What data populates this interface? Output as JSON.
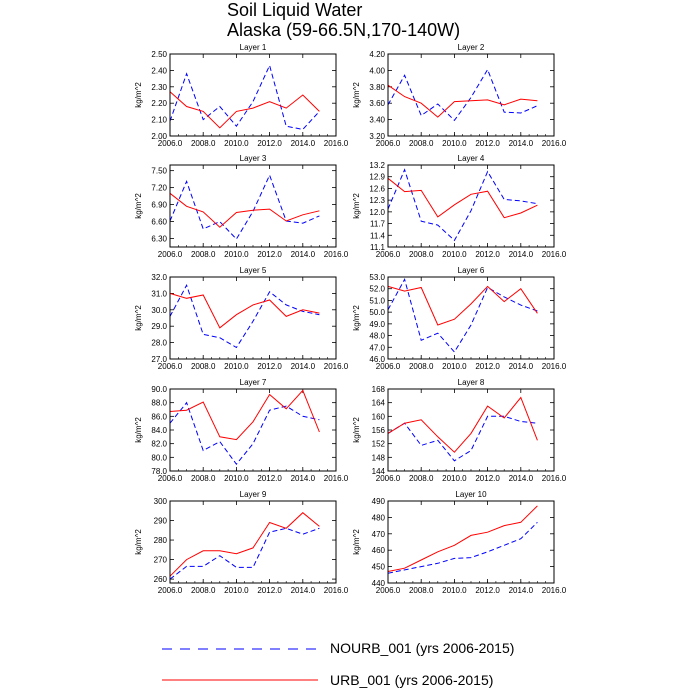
{
  "figure": {
    "title_line1": "Soil Liquid Water",
    "title_line2": "Alaska (59-66.5N,170-140W)"
  },
  "colors": {
    "nourb": "#0000ff",
    "urb": "#ff0000",
    "axis": "#000000"
  },
  "legend": {
    "items": [
      {
        "label": "NOURB_001 (yrs 2006-2015)",
        "style": "dashed",
        "color": "#0000ff"
      },
      {
        "label": "URB_001 (yrs 2006-2015)",
        "style": "solid",
        "color": "#ff0000"
      }
    ]
  },
  "chart_data": [
    {
      "type": "line",
      "title": "Layer 1",
      "ylabel": "kg/m^2",
      "xlim": [
        2006,
        2016
      ],
      "ylim": [
        2.0,
        2.5
      ],
      "xticks": [
        "2006.0",
        "2008.0",
        "2010.0",
        "2012.0",
        "2014.0",
        "2016.0"
      ],
      "yticks": [
        "2.00",
        "2.10",
        "2.20",
        "2.30",
        "2.40",
        "2.50"
      ],
      "x": [
        2006,
        2007,
        2008,
        2009,
        2010,
        2011,
        2012,
        2013,
        2014,
        2015
      ],
      "series": [
        {
          "name": "NOURB_001 (yrs 2006-2015)",
          "values": [
            2.09,
            2.38,
            2.1,
            2.18,
            2.06,
            2.21,
            2.43,
            2.06,
            2.04,
            2.15
          ]
        },
        {
          "name": "URB_001 (yrs 2006-2015)",
          "values": [
            2.27,
            2.18,
            2.15,
            2.05,
            2.15,
            2.17,
            2.21,
            2.17,
            2.25,
            2.15
          ]
        }
      ]
    },
    {
      "type": "line",
      "title": "Layer 2",
      "ylabel": "kg/m^2",
      "xlim": [
        2006,
        2016
      ],
      "ylim": [
        3.2,
        4.2
      ],
      "xticks": [
        "2006.0",
        "2008.0",
        "2010.0",
        "2012.0",
        "2014.0",
        "2016.0"
      ],
      "yticks": [
        "3.20",
        "3.40",
        "3.60",
        "3.80",
        "4.00",
        "4.20"
      ],
      "x": [
        2006,
        2007,
        2008,
        2009,
        2010,
        2011,
        2012,
        2013,
        2014,
        2015
      ],
      "series": [
        {
          "name": "NOURB_001 (yrs 2006-2015)",
          "values": [
            3.58,
            3.94,
            3.45,
            3.59,
            3.39,
            3.67,
            4.01,
            3.49,
            3.48,
            3.57
          ]
        },
        {
          "name": "URB_001 (yrs 2006-2015)",
          "values": [
            3.82,
            3.68,
            3.6,
            3.43,
            3.62,
            3.63,
            3.64,
            3.58,
            3.65,
            3.63
          ]
        }
      ]
    },
    {
      "type": "line",
      "title": "Layer 3",
      "ylabel": "kg/m^2",
      "xlim": [
        2006,
        2016
      ],
      "ylim": [
        6.15,
        7.6
      ],
      "xticks": [
        "2006.0",
        "2008.0",
        "2010.0",
        "2012.0",
        "2014.0",
        "2016.0"
      ],
      "yticks": [
        "6.30",
        "6.60",
        "6.90",
        "7.20",
        "7.50"
      ],
      "x": [
        2006,
        2007,
        2008,
        2009,
        2010,
        2011,
        2012,
        2013,
        2014,
        2015
      ],
      "series": [
        {
          "name": "NOURB_001 (yrs 2006-2015)",
          "values": [
            6.61,
            7.31,
            6.47,
            6.6,
            6.29,
            6.78,
            7.42,
            6.61,
            6.57,
            6.7
          ]
        },
        {
          "name": "URB_001 (yrs 2006-2015)",
          "values": [
            7.1,
            6.87,
            6.77,
            6.5,
            6.76,
            6.8,
            6.82,
            6.61,
            6.72,
            6.79
          ]
        }
      ]
    },
    {
      "type": "line",
      "title": "Layer 4",
      "ylabel": "kg/m^2",
      "xlim": [
        2006,
        2016
      ],
      "ylim": [
        11.1,
        13.2
      ],
      "xticks": [
        "2006.0",
        "2008.0",
        "2010.0",
        "2012.0",
        "2014.0",
        "2016.0"
      ],
      "yticks": [
        "11.1",
        "11.4",
        "11.7",
        "12.0",
        "12.3",
        "12.6",
        "12.9",
        "13.2"
      ],
      "x": [
        2006,
        2007,
        2008,
        2009,
        2010,
        2011,
        2012,
        2013,
        2014,
        2015
      ],
      "series": [
        {
          "name": "NOURB_001 (yrs 2006-2015)",
          "values": [
            12.07,
            13.08,
            11.76,
            11.66,
            11.27,
            12.03,
            13.03,
            12.32,
            12.28,
            12.21
          ]
        },
        {
          "name": "URB_001 (yrs 2006-2015)",
          "values": [
            12.86,
            12.52,
            12.55,
            11.87,
            12.18,
            12.45,
            12.53,
            11.85,
            11.97,
            12.17
          ]
        }
      ]
    },
    {
      "type": "line",
      "title": "Layer 5",
      "ylabel": "kg/m^2",
      "xlim": [
        2006,
        2016
      ],
      "ylim": [
        27.0,
        32.0
      ],
      "xticks": [
        "2006.0",
        "2008.0",
        "2010.0",
        "2012.0",
        "2014.0",
        "2016.0"
      ],
      "yticks": [
        "27.0",
        "28.0",
        "29.0",
        "30.0",
        "31.0",
        "32.0"
      ],
      "x": [
        2006,
        2007,
        2008,
        2009,
        2010,
        2011,
        2012,
        2013,
        2014,
        2015
      ],
      "series": [
        {
          "name": "NOURB_001 (yrs 2006-2015)",
          "values": [
            29.6,
            31.5,
            28.5,
            28.3,
            27.7,
            29.3,
            31.1,
            30.3,
            29.9,
            29.7
          ]
        },
        {
          "name": "URB_001 (yrs 2006-2015)",
          "values": [
            31.0,
            30.7,
            30.9,
            28.9,
            29.7,
            30.3,
            30.6,
            29.6,
            30.0,
            29.8
          ]
        }
      ]
    },
    {
      "type": "line",
      "title": "Layer 6",
      "ylabel": "kg/m^2",
      "xlim": [
        2006,
        2016
      ],
      "ylim": [
        46.0,
        53.0
      ],
      "xticks": [
        "2006.0",
        "2008.0",
        "2010.0",
        "2012.0",
        "2014.0",
        "2016.0"
      ],
      "yticks": [
        "46.0",
        "47.0",
        "48.0",
        "49.0",
        "50.0",
        "51.0",
        "52.0",
        "53.0"
      ],
      "x": [
        2006,
        2007,
        2008,
        2009,
        2010,
        2011,
        2012,
        2013,
        2014,
        2015
      ],
      "series": [
        {
          "name": "NOURB_001 (yrs 2006-2015)",
          "values": [
            50.2,
            52.8,
            47.6,
            48.2,
            46.6,
            48.9,
            52.1,
            51.3,
            50.6,
            50.1
          ]
        },
        {
          "name": "URB_001 (yrs 2006-2015)",
          "values": [
            52.2,
            51.8,
            52.1,
            48.9,
            49.4,
            50.7,
            52.2,
            50.9,
            52.0,
            49.9
          ]
        }
      ]
    },
    {
      "type": "line",
      "title": "Layer 7",
      "ylabel": "kg/m^2",
      "xlim": [
        2006,
        2016
      ],
      "ylim": [
        78.0,
        90.0
      ],
      "xticks": [
        "2006.0",
        "2008.0",
        "2010.0",
        "2012.0",
        "2014.0",
        "2016.0"
      ],
      "yticks": [
        "78.0",
        "80.0",
        "82.0",
        "84.0",
        "86.0",
        "88.0",
        "90.0"
      ],
      "x": [
        2006,
        2007,
        2008,
        2009,
        2010,
        2011,
        2012,
        2013,
        2014,
        2015
      ],
      "series": [
        {
          "name": "NOURB_001 (yrs 2006-2015)",
          "values": [
            85.0,
            88.0,
            81.0,
            82.3,
            79.0,
            82.0,
            86.9,
            87.5,
            86.0,
            85.5
          ]
        },
        {
          "name": "URB_001 (yrs 2006-2015)",
          "values": [
            86.7,
            86.9,
            88.1,
            83.0,
            82.6,
            85.2,
            89.2,
            87.1,
            89.8,
            83.7
          ]
        }
      ]
    },
    {
      "type": "line",
      "title": "Layer 8",
      "ylabel": "kg/m^2",
      "xlim": [
        2006,
        2016
      ],
      "ylim": [
        144,
        168
      ],
      "xticks": [
        "2006.0",
        "2008.0",
        "2010.0",
        "2012.0",
        "2014.0",
        "2016.0"
      ],
      "yticks": [
        "144",
        "148",
        "152",
        "156",
        "160",
        "164",
        "168"
      ],
      "x": [
        2006,
        2007,
        2008,
        2009,
        2010,
        2011,
        2012,
        2013,
        2014,
        2015
      ],
      "series": [
        {
          "name": "NOURB_001 (yrs 2006-2015)",
          "values": [
            155.0,
            158.0,
            151.5,
            153.0,
            147.0,
            150.0,
            160.0,
            160.0,
            158.5,
            158.0
          ]
        },
        {
          "name": "URB_001 (yrs 2006-2015)",
          "values": [
            155.0,
            158.0,
            159.0,
            154.0,
            149.5,
            155.0,
            163.0,
            159.5,
            165.5,
            153.0
          ]
        }
      ]
    },
    {
      "type": "line",
      "title": "Layer 9",
      "ylabel": "kg/m^2",
      "xlim": [
        2006,
        2016
      ],
      "ylim": [
        258,
        300
      ],
      "xticks": [
        "2006.0",
        "2008.0",
        "2010.0",
        "2012.0",
        "2014.0",
        "2016.0"
      ],
      "yticks": [
        "260",
        "270",
        "280",
        "290",
        "300"
      ],
      "x": [
        2006,
        2007,
        2008,
        2009,
        2010,
        2011,
        2012,
        2013,
        2014,
        2015
      ],
      "series": [
        {
          "name": "NOURB_001 (yrs 2006-2015)",
          "values": [
            260.0,
            266.5,
            266.5,
            272.0,
            266.0,
            266.0,
            284.0,
            286.0,
            283.0,
            286.0
          ]
        },
        {
          "name": "URB_001 (yrs 2006-2015)",
          "values": [
            261.5,
            270.0,
            274.5,
            274.5,
            273.0,
            276.0,
            289.0,
            286.0,
            294.0,
            287.0
          ]
        }
      ]
    },
    {
      "type": "line",
      "title": "Layer 10",
      "ylabel": "kg/m^2",
      "xlim": [
        2006,
        2016
      ],
      "ylim": [
        440,
        490
      ],
      "xticks": [
        "2006.0",
        "2008.0",
        "2010.0",
        "2012.0",
        "2014.0",
        "2016.0"
      ],
      "yticks": [
        "440",
        "450",
        "460",
        "470",
        "480",
        "490"
      ],
      "x": [
        2006,
        2007,
        2008,
        2009,
        2010,
        2011,
        2012,
        2013,
        2014,
        2015
      ],
      "series": [
        {
          "name": "NOURB_001 (yrs 2006-2015)",
          "values": [
            446.0,
            448.0,
            450.0,
            452.0,
            455.0,
            455.5,
            459.0,
            463.0,
            467.0,
            477.0
          ]
        },
        {
          "name": "URB_001 (yrs 2006-2015)",
          "values": [
            447.0,
            449.0,
            454.0,
            459.0,
            463.0,
            469.0,
            471.0,
            475.0,
            477.0,
            487.0
          ]
        }
      ]
    }
  ]
}
